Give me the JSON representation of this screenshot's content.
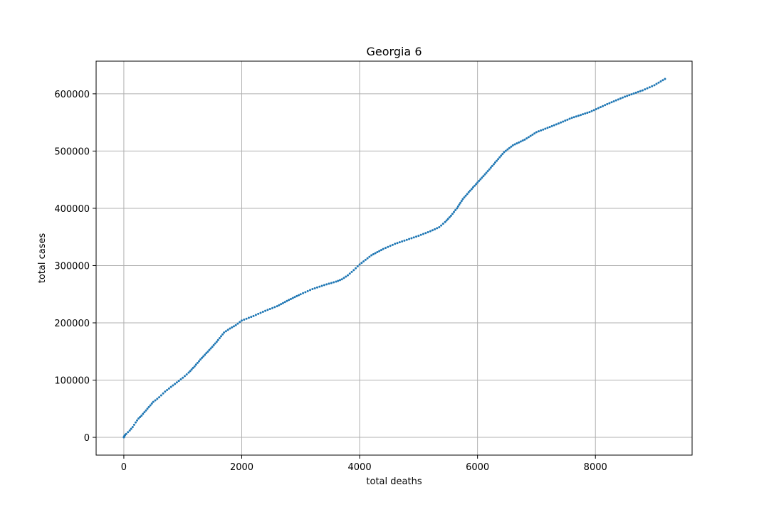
{
  "chart_data": {
    "type": "scatter",
    "title": "Georgia 6",
    "xlabel": "total deaths",
    "ylabel": "total cases",
    "xlim": [
      -470,
      9640
    ],
    "ylim": [
      -31000,
      657000
    ],
    "x_ticks": [
      0,
      2000,
      4000,
      6000,
      8000
    ],
    "y_ticks": [
      0,
      100000,
      200000,
      300000,
      400000,
      500000,
      600000
    ],
    "grid": true,
    "marker_color": "#1f77b4",
    "series": [
      {
        "points": [
          [
            0,
            0
          ],
          [
            2,
            400
          ],
          [
            5,
            1200
          ],
          [
            10,
            2500
          ],
          [
            20,
            4000
          ],
          [
            40,
            6000
          ],
          [
            70,
            9000
          ],
          [
            100,
            12000
          ],
          [
            150,
            18000
          ],
          [
            200,
            26000
          ],
          [
            250,
            33000
          ],
          [
            300,
            38000
          ],
          [
            350,
            44000
          ],
          [
            400,
            50000
          ],
          [
            450,
            56000
          ],
          [
            500,
            62000
          ],
          [
            600,
            70000
          ],
          [
            700,
            80000
          ],
          [
            800,
            88000
          ],
          [
            900,
            96000
          ],
          [
            1000,
            104000
          ],
          [
            1100,
            113000
          ],
          [
            1200,
            124000
          ],
          [
            1300,
            136000
          ],
          [
            1400,
            147000
          ],
          [
            1500,
            158000
          ],
          [
            1600,
            170000
          ],
          [
            1700,
            183000
          ],
          [
            1800,
            190000
          ],
          [
            1900,
            196000
          ],
          [
            2000,
            204000
          ],
          [
            2200,
            212000
          ],
          [
            2400,
            221000
          ],
          [
            2600,
            229000
          ],
          [
            2800,
            240000
          ],
          [
            3000,
            250000
          ],
          [
            3200,
            259000
          ],
          [
            3400,
            266000
          ],
          [
            3600,
            272000
          ],
          [
            3700,
            276000
          ],
          [
            3800,
            283000
          ],
          [
            3900,
            292000
          ],
          [
            4000,
            302000
          ],
          [
            4100,
            310000
          ],
          [
            4200,
            318000
          ],
          [
            4400,
            329000
          ],
          [
            4600,
            338000
          ],
          [
            4800,
            345000
          ],
          [
            5000,
            352000
          ],
          [
            5200,
            360000
          ],
          [
            5350,
            367000
          ],
          [
            5450,
            376000
          ],
          [
            5550,
            387000
          ],
          [
            5650,
            400000
          ],
          [
            5750,
            416000
          ],
          [
            5850,
            428000
          ],
          [
            6000,
            445000
          ],
          [
            6150,
            462000
          ],
          [
            6300,
            480000
          ],
          [
            6450,
            498000
          ],
          [
            6600,
            510000
          ],
          [
            6800,
            520000
          ],
          [
            7000,
            533000
          ],
          [
            7300,
            545000
          ],
          [
            7600,
            558000
          ],
          [
            7900,
            568000
          ],
          [
            8200,
            582000
          ],
          [
            8500,
            595000
          ],
          [
            8800,
            606000
          ],
          [
            9000,
            615000
          ],
          [
            9180,
            626000
          ]
        ]
      }
    ]
  }
}
